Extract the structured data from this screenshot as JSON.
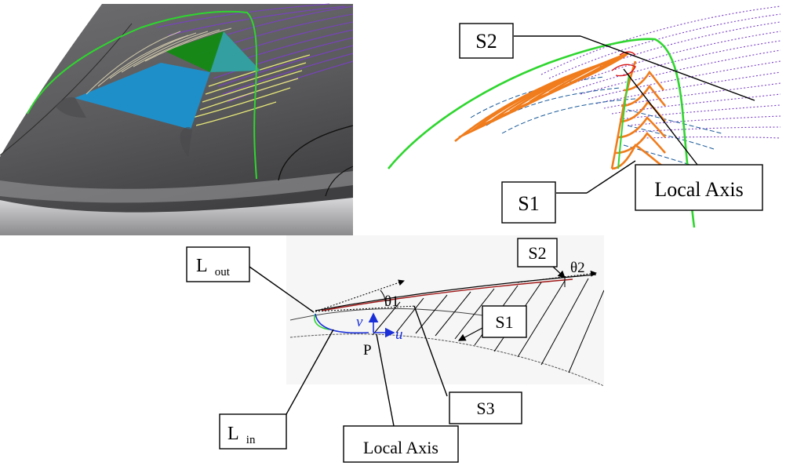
{
  "top_right": {
    "labels": {
      "s2": "S2",
      "s1": "S1",
      "local_axis": "Local Axis"
    }
  },
  "bottom": {
    "labels": {
      "l_out": "L",
      "l_out_sub": "out",
      "l_in": "L",
      "l_in_sub": "in",
      "s2": "S2",
      "s1": "S1",
      "s3": "S3",
      "local_axis": "Local Axis",
      "theta1": "θ1",
      "theta2": "θ2",
      "v": "v",
      "u": "u",
      "p": "P"
    }
  },
  "colors": {
    "surface_dark": "#5a5a5c",
    "surface_light": "#bcbcbe",
    "blue_patch": "#1f8fc9",
    "green_patch": "#138a13",
    "green_line": "#2fd62f",
    "orange_line": "#f07c1c",
    "purple_line": "#7a3fc8",
    "yellow_line": "#e8e87a",
    "red_line": "#b01818",
    "blue_axis": "#1a2fd8"
  }
}
